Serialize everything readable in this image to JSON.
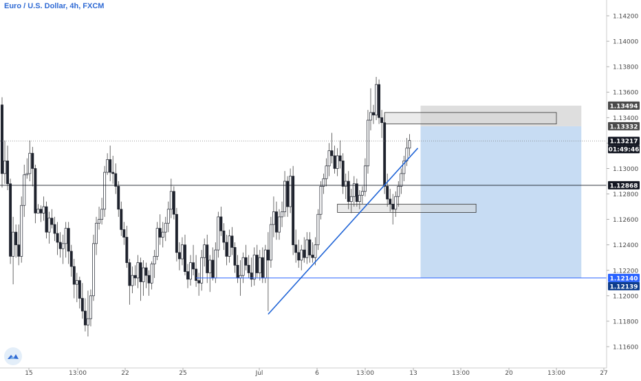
{
  "chart_data": {
    "type": "candlestick",
    "title": "Euro / U.S. Dollar, 4h, FXCM",
    "ylim": [
      1.115,
      1.1443
    ],
    "y_ticks": [
      "1.14200",
      "1.14000",
      "1.13800",
      "1.13600",
      "1.13400",
      "1.13200",
      "1.13000",
      "1.12800",
      "1.12600",
      "1.12400",
      "1.12200",
      "1.12000",
      "1.11800",
      "1.11600"
    ],
    "x_ticks": [
      "15",
      "13:00",
      "22",
      "25",
      "Jul",
      "6",
      "13:00",
      "13",
      "13:00",
      "20",
      "13:00",
      "27"
    ],
    "price_labels": [
      {
        "label": "1.13494",
        "value": 1.13494,
        "style": "grey"
      },
      {
        "label": "1.13332",
        "value": 1.13332,
        "style": "grey"
      },
      {
        "label": "1.13217",
        "value": 1.13217,
        "style": "dark"
      },
      {
        "label": "01:49:46",
        "value": 1.13197,
        "style": "timer"
      },
      {
        "label": "1.12868",
        "value": 1.12868,
        "style": "dark"
      },
      {
        "label": "1.12140",
        "value": 1.1214,
        "style": "blue"
      },
      {
        "label": "1.12139",
        "value": 1.12139,
        "style": "darkblue"
      }
    ],
    "horizontal_lines": [
      {
        "name": "support-line",
        "value": 1.12868,
        "color": "#131722"
      },
      {
        "name": "stop-line",
        "value": 1.1214,
        "color": "#2962ff"
      },
      {
        "name": "last-price-line",
        "value": 1.13217,
        "color": "#777777"
      }
    ],
    "trendline": {
      "from": {
        "bar": 96,
        "value": 1.11855
      },
      "to": {
        "bar": 150,
        "value": 1.1316
      },
      "color": "#1e63d6"
    },
    "zones": [
      {
        "name": "supply-zone",
        "from_bar": 138,
        "to_bar": 200,
        "top": 1.1344,
        "bottom": 1.1335
      },
      {
        "name": "demand-zone",
        "from_bar": 121,
        "to_bar": 171,
        "top": 1.1272,
        "bottom": 1.12655
      }
    ],
    "position": {
      "from_bar": 151,
      "to_bar": 209,
      "entry": 1.13332,
      "stop": 1.13494,
      "target": 1.1214
    },
    "candles": [
      [
        1.135,
        1.1356,
        1.1285,
        1.1296
      ],
      [
        1.1296,
        1.1322,
        1.1288,
        1.1306
      ],
      [
        1.1306,
        1.1318,
        1.1283,
        1.1288
      ],
      [
        1.1288,
        1.1292,
        1.1225,
        1.1231
      ],
      [
        1.1231,
        1.1262,
        1.1209,
        1.125
      ],
      [
        1.125,
        1.1256,
        1.123,
        1.124
      ],
      [
        1.124,
        1.1256,
        1.1224,
        1.1231
      ],
      [
        1.1231,
        1.1278,
        1.1226,
        1.1271
      ],
      [
        1.1271,
        1.1303,
        1.1262,
        1.1295
      ],
      [
        1.1295,
        1.1308,
        1.1292,
        1.1296
      ],
      [
        1.1296,
        1.1322,
        1.129,
        1.1312
      ],
      [
        1.1312,
        1.1317,
        1.1286,
        1.13
      ],
      [
        1.13,
        1.1303,
        1.1257,
        1.1265
      ],
      [
        1.1265,
        1.1272,
        1.1265,
        1.1268
      ],
      [
        1.1268,
        1.1271,
        1.1258,
        1.1265
      ],
      [
        1.1265,
        1.1278,
        1.1259,
        1.127
      ],
      [
        1.127,
        1.1274,
        1.1245,
        1.125
      ],
      [
        1.125,
        1.1266,
        1.1241,
        1.1261
      ],
      [
        1.1261,
        1.1268,
        1.1253,
        1.1256
      ],
      [
        1.1256,
        1.1262,
        1.1243,
        1.1249
      ],
      [
        1.1249,
        1.1258,
        1.1232,
        1.1242
      ],
      [
        1.1242,
        1.125,
        1.123,
        1.1237
      ],
      [
        1.1237,
        1.1248,
        1.1225,
        1.1241
      ],
      [
        1.1241,
        1.1258,
        1.123,
        1.1253
      ],
      [
        1.1253,
        1.1258,
        1.1225,
        1.1235
      ],
      [
        1.1235,
        1.124,
        1.1215,
        1.1223
      ],
      [
        1.1223,
        1.1229,
        1.1198,
        1.1209
      ],
      [
        1.1209,
        1.1218,
        1.1195,
        1.1212
      ],
      [
        1.1212,
        1.1215,
        1.119,
        1.1198
      ],
      [
        1.1198,
        1.121,
        1.1182,
        1.1188
      ],
      [
        1.1188,
        1.1198,
        1.1172,
        1.1177
      ],
      [
        1.1177,
        1.1204,
        1.1168,
        1.1182
      ],
      [
        1.1182,
        1.1205,
        1.1176,
        1.12
      ],
      [
        1.12,
        1.1248,
        1.1196,
        1.1241
      ],
      [
        1.1241,
        1.1262,
        1.1232,
        1.1257
      ],
      [
        1.1257,
        1.127,
        1.1252,
        1.126
      ],
      [
        1.126,
        1.1277,
        1.1256,
        1.1268
      ],
      [
        1.1268,
        1.1302,
        1.1262,
        1.1297
      ],
      [
        1.1297,
        1.1312,
        1.1295,
        1.1307
      ],
      [
        1.1307,
        1.1318,
        1.129,
        1.1297
      ],
      [
        1.1297,
        1.131,
        1.1288,
        1.1296
      ],
      [
        1.1296,
        1.1304,
        1.128,
        1.1286
      ],
      [
        1.1286,
        1.129,
        1.1262,
        1.1268
      ],
      [
        1.1268,
        1.1274,
        1.1247,
        1.1252
      ],
      [
        1.1252,
        1.1258,
        1.124,
        1.1246
      ],
      [
        1.1246,
        1.1255,
        1.1222,
        1.1226
      ],
      [
        1.1226,
        1.1229,
        1.1193,
        1.1208
      ],
      [
        1.1208,
        1.1223,
        1.1202,
        1.1216
      ],
      [
        1.1216,
        1.1224,
        1.1208,
        1.1214
      ],
      [
        1.1214,
        1.1232,
        1.1206,
        1.1226
      ],
      [
        1.1226,
        1.123,
        1.1196,
        1.1211
      ],
      [
        1.1211,
        1.1228,
        1.12,
        1.1222
      ],
      [
        1.1222,
        1.1226,
        1.1206,
        1.1216
      ],
      [
        1.1216,
        1.122,
        1.12,
        1.121
      ],
      [
        1.121,
        1.1227,
        1.1205,
        1.1225
      ],
      [
        1.1225,
        1.1236,
        1.1214,
        1.1231
      ],
      [
        1.1231,
        1.1258,
        1.1228,
        1.1253
      ],
      [
        1.1253,
        1.1264,
        1.124,
        1.1246
      ],
      [
        1.1246,
        1.1258,
        1.1238,
        1.125
      ],
      [
        1.125,
        1.1262,
        1.1243,
        1.1257
      ],
      [
        1.1257,
        1.1274,
        1.125,
        1.1268
      ],
      [
        1.1268,
        1.1292,
        1.1261,
        1.1282
      ],
      [
        1.1282,
        1.1286,
        1.126,
        1.1264
      ],
      [
        1.1264,
        1.1269,
        1.1227,
        1.1234
      ],
      [
        1.1234,
        1.1242,
        1.122,
        1.1229
      ],
      [
        1.1229,
        1.1246,
        1.1224,
        1.124
      ],
      [
        1.124,
        1.1248,
        1.1216,
        1.1219
      ],
      [
        1.1219,
        1.1225,
        1.1206,
        1.1213
      ],
      [
        1.1213,
        1.1232,
        1.1208,
        1.1226
      ],
      [
        1.1226,
        1.124,
        1.1216,
        1.1221
      ],
      [
        1.1221,
        1.1232,
        1.1207,
        1.1212
      ],
      [
        1.1212,
        1.1218,
        1.12,
        1.121
      ],
      [
        1.121,
        1.1236,
        1.1204,
        1.123
      ],
      [
        1.123,
        1.1245,
        1.1223,
        1.124
      ],
      [
        1.124,
        1.1248,
        1.121,
        1.1218
      ],
      [
        1.1218,
        1.1232,
        1.1203,
        1.1228
      ],
      [
        1.1228,
        1.1238,
        1.1212,
        1.1214
      ],
      [
        1.1214,
        1.1242,
        1.121,
        1.1236
      ],
      [
        1.1236,
        1.1266,
        1.123,
        1.1262
      ],
      [
        1.1262,
        1.127,
        1.1247,
        1.1251
      ],
      [
        1.1251,
        1.1257,
        1.1236,
        1.1242
      ],
      [
        1.1242,
        1.1248,
        1.1224,
        1.1231
      ],
      [
        1.1231,
        1.1252,
        1.1226,
        1.1247
      ],
      [
        1.1247,
        1.1254,
        1.1232,
        1.1238
      ],
      [
        1.1238,
        1.1242,
        1.1218,
        1.1224
      ],
      [
        1.1224,
        1.1232,
        1.121,
        1.1214
      ],
      [
        1.1214,
        1.1228,
        1.12,
        1.1216
      ],
      [
        1.1216,
        1.1234,
        1.121,
        1.123
      ],
      [
        1.123,
        1.124,
        1.122,
        1.1224
      ],
      [
        1.1224,
        1.1232,
        1.1214,
        1.1218
      ],
      [
        1.1218,
        1.123,
        1.1207,
        1.1213
      ],
      [
        1.1213,
        1.1238,
        1.1208,
        1.1232
      ],
      [
        1.1232,
        1.124,
        1.1214,
        1.1218
      ],
      [
        1.1218,
        1.1236,
        1.1212,
        1.123
      ],
      [
        1.123,
        1.1238,
        1.121,
        1.1214
      ],
      [
        1.1214,
        1.124,
        1.121,
        1.1236
      ],
      [
        1.1236,
        1.125,
        1.1188,
        1.1228
      ],
      [
        1.1228,
        1.1262,
        1.1222,
        1.1256
      ],
      [
        1.1256,
        1.1278,
        1.1246,
        1.1266
      ],
      [
        1.1266,
        1.1274,
        1.1244,
        1.125
      ],
      [
        1.125,
        1.1268,
        1.1244,
        1.1262
      ],
      [
        1.1262,
        1.1274,
        1.1254,
        1.1266
      ],
      [
        1.1266,
        1.1298,
        1.1262,
        1.129
      ],
      [
        1.129,
        1.1294,
        1.1262,
        1.127
      ],
      [
        1.127,
        1.13,
        1.1265,
        1.1294
      ],
      [
        1.1294,
        1.1302,
        1.1232,
        1.124
      ],
      [
        1.124,
        1.1252,
        1.1226,
        1.1234
      ],
      [
        1.1234,
        1.1244,
        1.1222,
        1.1228
      ],
      [
        1.1228,
        1.124,
        1.122,
        1.1236
      ],
      [
        1.1236,
        1.1246,
        1.1226,
        1.123
      ],
      [
        1.123,
        1.125,
        1.1225,
        1.1244
      ],
      [
        1.1244,
        1.125,
        1.1226,
        1.1232
      ],
      [
        1.1232,
        1.1242,
        1.1226,
        1.123
      ],
      [
        1.123,
        1.1246,
        1.1224,
        1.124
      ],
      [
        1.124,
        1.1268,
        1.1236,
        1.1264
      ],
      [
        1.1264,
        1.129,
        1.126,
        1.1286
      ],
      [
        1.1286,
        1.1296,
        1.128,
        1.1292
      ],
      [
        1.1292,
        1.1308,
        1.1286,
        1.1302
      ],
      [
        1.1302,
        1.132,
        1.1294,
        1.1314
      ],
      [
        1.1314,
        1.1328,
        1.1304,
        1.131
      ],
      [
        1.131,
        1.1318,
        1.1296,
        1.13
      ],
      [
        1.13,
        1.1316,
        1.1294,
        1.131
      ],
      [
        1.131,
        1.1322,
        1.13,
        1.1306
      ],
      [
        1.1306,
        1.1312,
        1.128,
        1.1286
      ],
      [
        1.1286,
        1.1296,
        1.1276,
        1.129
      ],
      [
        1.129,
        1.1298,
        1.1268,
        1.1274
      ],
      [
        1.1274,
        1.1284,
        1.1265,
        1.1278
      ],
      [
        1.1278,
        1.1294,
        1.127,
        1.1288
      ],
      [
        1.1288,
        1.1292,
        1.127,
        1.1274
      ],
      [
        1.1274,
        1.1283,
        1.1268,
        1.1279
      ],
      [
        1.1279,
        1.1286,
        1.1272,
        1.1282
      ],
      [
        1.1282,
        1.1308,
        1.1278,
        1.1302
      ],
      [
        1.1302,
        1.1346,
        1.1296,
        1.1338
      ],
      [
        1.1338,
        1.1363,
        1.133,
        1.1344
      ],
      [
        1.1344,
        1.135,
        1.1335,
        1.1342
      ],
      [
        1.1342,
        1.1372,
        1.1338,
        1.1366
      ],
      [
        1.1366,
        1.137,
        1.1335,
        1.134
      ],
      [
        1.134,
        1.1346,
        1.1324,
        1.1336
      ],
      [
        1.1336,
        1.1342,
        1.128,
        1.1286
      ],
      [
        1.1286,
        1.1296,
        1.127,
        1.1276
      ],
      [
        1.1276,
        1.1284,
        1.1266,
        1.1272
      ],
      [
        1.1272,
        1.128,
        1.1256,
        1.1268
      ],
      [
        1.1268,
        1.1282,
        1.1262,
        1.1278
      ],
      [
        1.1278,
        1.129,
        1.127,
        1.1286
      ],
      [
        1.1286,
        1.13,
        1.128,
        1.1296
      ],
      [
        1.1296,
        1.131,
        1.129,
        1.1306
      ],
      [
        1.1306,
        1.1324,
        1.1302,
        1.1316
      ],
      [
        1.1316,
        1.1327,
        1.131,
        1.1322
      ]
    ]
  },
  "icons": {
    "logo": "tradingview-cloud-logo",
    "accent": "#2962ff"
  }
}
